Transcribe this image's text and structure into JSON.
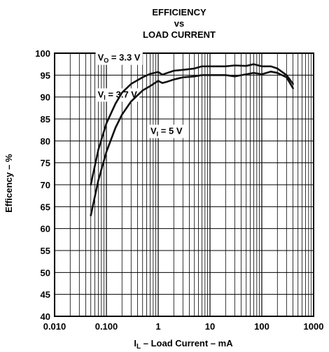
{
  "chart_data": {
    "type": "line",
    "title_lines": [
      "EFFICIENCY",
      "vs",
      "LOAD CURRENT"
    ],
    "xlabel": {
      "symbol": "I",
      "subscript": "L",
      "text": " – Load Current – mA"
    },
    "ylabel": "Efficency – %",
    "x_scale": "log",
    "xlim": [
      0.01,
      1000
    ],
    "ylim": [
      40,
      100
    ],
    "x_tick_labels": [
      {
        "value": 0.01,
        "label": "0.010"
      },
      {
        "value": 0.1,
        "label": "0.100"
      },
      {
        "value": 1,
        "label": "1"
      },
      {
        "value": 10,
        "label": "10"
      },
      {
        "value": 100,
        "label": "100"
      },
      {
        "value": 1000,
        "label": "1000"
      }
    ],
    "y_ticks": [
      40,
      45,
      50,
      55,
      60,
      65,
      70,
      75,
      80,
      85,
      90,
      95,
      100
    ],
    "grid": true,
    "annotations": [
      {
        "symbol": "V",
        "subscript": "O",
        "text": " = 3.3 V",
        "x": 0.068,
        "y": 98.3
      },
      {
        "symbol": "V",
        "subscript": "I",
        "text": " = 3.7 V",
        "x": 0.068,
        "y": 89.9
      },
      {
        "symbol": "V",
        "subscript": "I",
        "text": " = 5 V",
        "x": 0.71,
        "y": 81.6
      }
    ],
    "series": [
      {
        "name": "VI = 3.7 V",
        "x": [
          0.05,
          0.07,
          0.1,
          0.15,
          0.2,
          0.3,
          0.5,
          0.7,
          1,
          1.2,
          1.5,
          2,
          3,
          5,
          7,
          10,
          20,
          30,
          50,
          70,
          100,
          150,
          200,
          300,
          400
        ],
        "y": [
          70,
          78,
          84,
          88.5,
          91,
          93,
          94.5,
          95.3,
          95.7,
          95.1,
          95.5,
          96,
          96.2,
          96.5,
          97,
          97,
          97,
          97.2,
          97.1,
          97.5,
          97,
          97,
          96.5,
          95,
          93
        ]
      },
      {
        "name": "VI = 5 V",
        "x": [
          0.05,
          0.07,
          0.1,
          0.15,
          0.2,
          0.3,
          0.5,
          0.7,
          1,
          1.2,
          1.5,
          2,
          3,
          5,
          7,
          10,
          20,
          30,
          50,
          70,
          100,
          150,
          200,
          300,
          400
        ],
        "y": [
          63,
          71,
          77.5,
          83,
          86,
          89,
          91.5,
          92.5,
          93.7,
          93.2,
          93.5,
          94,
          94.5,
          94.7,
          95,
          95,
          95,
          94.7,
          95.2,
          95.5,
          95.2,
          95.8,
          95.5,
          94.5,
          92
        ]
      }
    ]
  }
}
